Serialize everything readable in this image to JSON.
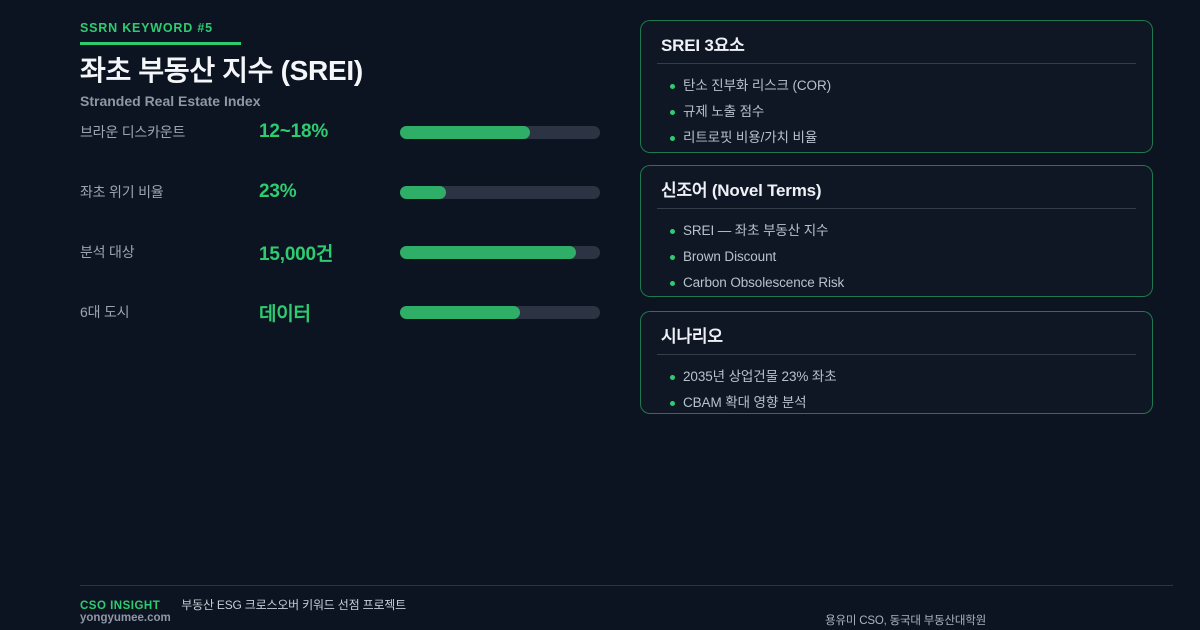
{
  "colors": {
    "background": "#0d1421",
    "accent": "#2ecc71",
    "bar_fill": "#2eae66",
    "bar_track": "#2c3444",
    "card_border": "rgba(46,204,113,0.55)"
  },
  "header": {
    "eyebrow": "SSRN KEYWORD #5",
    "title": "좌초 부동산 지수 (SREI)",
    "subtitle": "Stranded Real Estate Index"
  },
  "stats": {
    "items": [
      {
        "label": "브라운 디스카운트",
        "value": "12~18%",
        "percent": 65,
        "fill_style": "width:65%"
      },
      {
        "label": "좌초 위기 비율",
        "value": "23%",
        "percent": 23,
        "fill_style": "width:23%"
      },
      {
        "label": "분석 대상",
        "value": "15,000건",
        "percent": 88,
        "fill_style": "width:88%"
      },
      {
        "label": "6대 도시",
        "value": "데이터",
        "percent": 60,
        "fill_style": "width:60%"
      }
    ]
  },
  "cards": [
    {
      "title": "SREI 3요소",
      "bullets": [
        "탄소 진부화 리스크 (COR)",
        "규제 노출 점수",
        "리트로핏 비용/가치 비율"
      ]
    },
    {
      "title": "신조어 (Novel Terms)",
      "bullets": [
        "SREI — 좌초 부동산 지수",
        "Brown Discount",
        "Carbon Obsolescence Risk"
      ]
    },
    {
      "title": "시나리오",
      "bullets": [
        "2035년 상업건물 23% 좌초",
        "CBAM 확대 영향 분석"
      ]
    }
  ],
  "footer": {
    "brand": "CSO INSIGHT",
    "project": "부동산 ESG 크로스오버 키워드 선점 프로젝트",
    "site": "yongyumee.com",
    "credit": "용유미 CSO, 동국대 부동산대학원"
  }
}
